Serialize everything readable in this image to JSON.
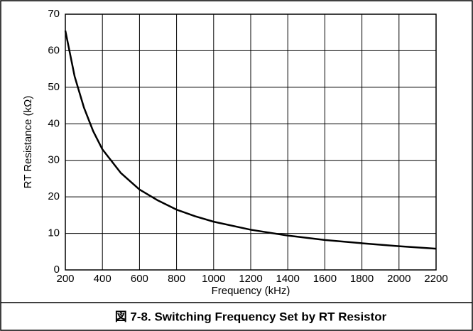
{
  "chart_data": {
    "type": "line",
    "caption": "図 7-8. Switching Frequency Set by RT Resistor",
    "x_label": "Frequency (kHz)",
    "y_label": "RT Resistance (kΩ)",
    "x": [
      200,
      250,
      300,
      350,
      400,
      500,
      600,
      700,
      800,
      900,
      1000,
      1200,
      1400,
      1600,
      1800,
      2000,
      2200
    ],
    "series": [
      {
        "name": "RT",
        "color": "#000000",
        "values": [
          65.5,
          53,
          44.5,
          38,
          33,
          26.5,
          22,
          19,
          16.5,
          14.7,
          13.2,
          11,
          9.4,
          8.2,
          7.3,
          6.5,
          5.8
        ]
      }
    ],
    "xlim": [
      200,
      2200
    ],
    "xticks": [
      200,
      400,
      600,
      800,
      1000,
      1200,
      1400,
      1600,
      1800,
      2000,
      2200
    ],
    "ylim": [
      0,
      70
    ],
    "yticks": [
      0,
      10,
      20,
      30,
      40,
      50,
      60,
      70
    ],
    "grid": true
  }
}
